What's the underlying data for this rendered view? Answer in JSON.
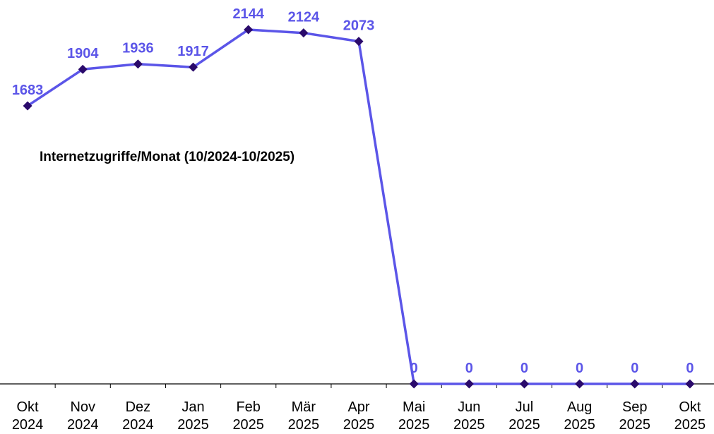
{
  "chart_data": {
    "type": "line",
    "title": "Internetzugriffe/Monat (10/2024-10/2025)",
    "categories": [
      [
        "Okt",
        "2024"
      ],
      [
        "Nov",
        "2024"
      ],
      [
        "Dez",
        "2024"
      ],
      [
        "Jan",
        "2025"
      ],
      [
        "Feb",
        "2025"
      ],
      [
        "Mär",
        "2025"
      ],
      [
        "Apr",
        "2025"
      ],
      [
        "Mai",
        "2025"
      ],
      [
        "Jun",
        "2025"
      ],
      [
        "Jul",
        "2025"
      ],
      [
        "Aug",
        "2025"
      ],
      [
        "Sep",
        "2025"
      ],
      [
        "Okt",
        "2025"
      ]
    ],
    "series": [
      {
        "values": [
          1683,
          1904,
          1936,
          1917,
          2144,
          2124,
          2073,
          0,
          0,
          0,
          0,
          0,
          0
        ],
        "data_labels": [
          "1683",
          "1904",
          "1936",
          "1917",
          "2144",
          "2124",
          "2073",
          "0",
          "0",
          "0",
          "0",
          "0",
          "0"
        ]
      }
    ],
    "ylim": [
      0,
      2200
    ],
    "grid": false,
    "legend": "none",
    "colors": {
      "line": "#5b55e8",
      "marker": "#2a0a6b",
      "label": "#5b55e8",
      "axis": "#000000"
    }
  }
}
